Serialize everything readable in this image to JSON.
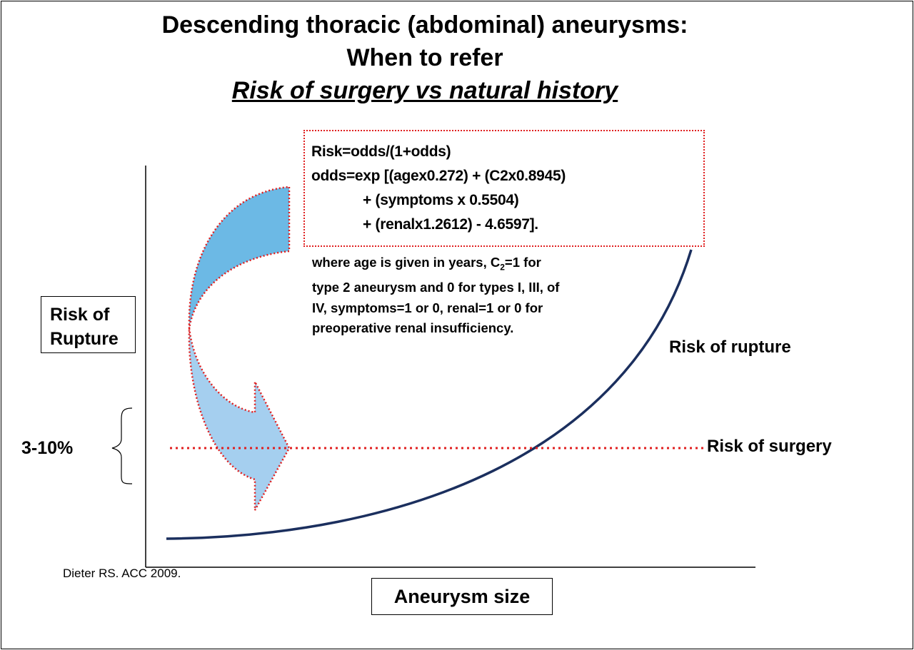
{
  "title": {
    "line1": "Descending thoracic (abdominal) aneurysms:",
    "line2": "When to refer",
    "line3": "Risk of surgery vs natural history"
  },
  "formula": {
    "line1": "Risk=odds/(1+odds)",
    "line2": "odds=exp [(agex0.272) + (C2x0.8945)",
    "line3": "+ (symptoms x 0.5504)",
    "line4": "+ (renalx1.2612) - 4.6597]."
  },
  "note": {
    "line1_a": "where age is given in years, C",
    "line1_sub": "2",
    "line1_b": "=1 for",
    "line2": "type 2 aneurysm and 0 for types I, III, of",
    "line3": "IV, symptoms=1 or 0, renal=1 or 0 for",
    "line4": "preoperative renal insufficiency."
  },
  "axes": {
    "y_label_line1": "Risk of",
    "y_label_line2": "Rupture",
    "x_label": "Aneurysm size"
  },
  "labels": {
    "rupture_curve": "Risk of rupture",
    "surgery_line": "Risk of surgery",
    "surgery_range": "3-10%"
  },
  "citation": "Dieter RS. ACC 2009.",
  "colors": {
    "curve": "#1b2f5e",
    "dotted": "#e02020",
    "arrow_dark": "#6cb9e5",
    "arrow_light": "#a5cfef"
  }
}
